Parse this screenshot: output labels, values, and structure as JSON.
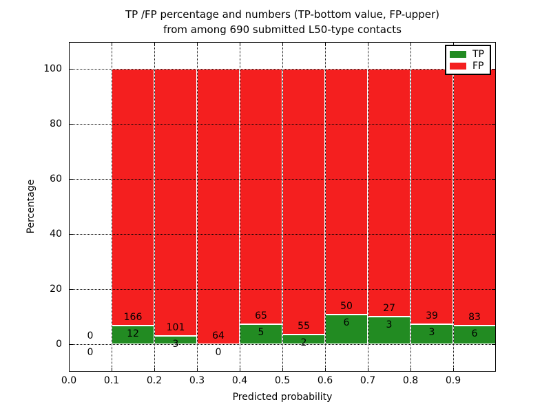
{
  "title": {
    "line1": "TP /FP percentage and numbers (TP-bottom value, FP-upper)",
    "line2": "from among 690 submitted L50-type contacts"
  },
  "chart_data": {
    "type": "bar",
    "stacked": true,
    "title": "TP /FP percentage and numbers (TP-bottom value, FP-upper) from among 690 submitted L50-type contacts",
    "xlabel": "Predicted probability",
    "ylabel": "Percentage",
    "xlim": [
      0.0,
      1.0
    ],
    "ylim": [
      -10,
      110
    ],
    "xticks": [
      0.0,
      0.1,
      0.2,
      0.3,
      0.4,
      0.5,
      0.6,
      0.7,
      0.8,
      0.9
    ],
    "xtick_labels": [
      "0.0",
      "0.1",
      "0.2",
      "0.3",
      "0.4",
      "0.5",
      "0.6",
      "0.7",
      "0.8",
      "0.9"
    ],
    "yticks": [
      0,
      20,
      40,
      60,
      80,
      100
    ],
    "grid": {
      "linestyle": "dotted",
      "color": "#000000",
      "above_bars": true
    },
    "legend_position": "upper-right",
    "series": [
      {
        "name": "TP",
        "color": "#228b22"
      },
      {
        "name": "FP",
        "color": "#f41f1f"
      }
    ],
    "bins": [
      {
        "range": [
          0.0,
          0.1
        ],
        "tp": 0,
        "fp": 0,
        "tp_pct": 0.0
      },
      {
        "range": [
          0.1,
          0.2
        ],
        "tp": 12,
        "fp": 166,
        "tp_pct": 6.7
      },
      {
        "range": [
          0.2,
          0.3
        ],
        "tp": 3,
        "fp": 101,
        "tp_pct": 2.9
      },
      {
        "range": [
          0.3,
          0.4
        ],
        "tp": 0,
        "fp": 64,
        "tp_pct": 0.0
      },
      {
        "range": [
          0.4,
          0.5
        ],
        "tp": 5,
        "fp": 65,
        "tp_pct": 7.1
      },
      {
        "range": [
          0.5,
          0.6
        ],
        "tp": 2,
        "fp": 55,
        "tp_pct": 3.5
      },
      {
        "range": [
          0.6,
          0.7
        ],
        "tp": 6,
        "fp": 50,
        "tp_pct": 10.7
      },
      {
        "range": [
          0.7,
          0.8
        ],
        "tp": 3,
        "fp": 27,
        "tp_pct": 10.0
      },
      {
        "range": [
          0.8,
          0.9
        ],
        "tp": 3,
        "fp": 39,
        "tp_pct": 7.1
      },
      {
        "range": [
          0.9,
          1.0
        ],
        "tp": 6,
        "fp": 83,
        "tp_pct": 6.7
      }
    ]
  }
}
